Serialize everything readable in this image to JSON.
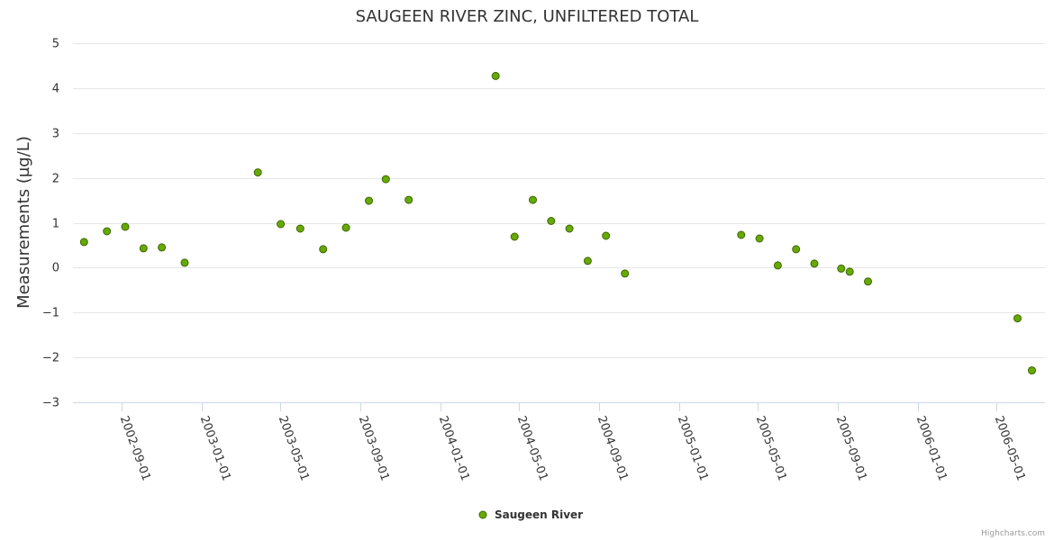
{
  "chart_data": {
    "type": "scatter",
    "title": "SAUGEEN RIVER ZINC, UNFILTERED TOTAL",
    "xlabel": "",
    "ylabel": "Measurements (µg/L)",
    "ylim": [
      -3,
      5
    ],
    "y_ticks": [
      "5",
      "4",
      "3",
      "2",
      "1",
      "0",
      "−1",
      "−2",
      "−3"
    ],
    "x_range": [
      "2002-06-18",
      "2006-07-15"
    ],
    "x_ticks": [
      "2002-09-01",
      "2003-01-01",
      "2003-05-01",
      "2003-09-01",
      "2004-01-01",
      "2004-05-01",
      "2004-09-01",
      "2005-01-01",
      "2005-05-01",
      "2005-09-01",
      "2006-01-01",
      "2006-05-01"
    ],
    "grid": true,
    "legend_position": "bottom-center",
    "series": [
      {
        "name": "Saugeen River",
        "color": "#66aa00",
        "points": [
          {
            "x": "2002-07-05",
            "y": 0.57
          },
          {
            "x": "2002-08-09",
            "y": 0.81
          },
          {
            "x": "2002-09-06",
            "y": 0.91
          },
          {
            "x": "2002-10-04",
            "y": 0.43
          },
          {
            "x": "2002-11-01",
            "y": 0.45
          },
          {
            "x": "2002-12-06",
            "y": 0.11
          },
          {
            "x": "2003-03-28",
            "y": 2.12
          },
          {
            "x": "2003-05-02",
            "y": 0.97
          },
          {
            "x": "2003-06-01",
            "y": 0.87
          },
          {
            "x": "2003-07-06",
            "y": 0.41
          },
          {
            "x": "2003-08-10",
            "y": 0.89
          },
          {
            "x": "2003-09-14",
            "y": 1.49
          },
          {
            "x": "2003-10-10",
            "y": 1.97
          },
          {
            "x": "2003-11-14",
            "y": 1.51
          },
          {
            "x": "2004-03-26",
            "y": 4.27
          },
          {
            "x": "2004-04-24",
            "y": 0.69
          },
          {
            "x": "2004-05-22",
            "y": 1.51
          },
          {
            "x": "2004-06-19",
            "y": 1.04
          },
          {
            "x": "2004-07-17",
            "y": 0.87
          },
          {
            "x": "2004-08-14",
            "y": 0.15
          },
          {
            "x": "2004-09-11",
            "y": 0.71
          },
          {
            "x": "2004-10-10",
            "y": -0.13
          },
          {
            "x": "2005-04-06",
            "y": 0.73
          },
          {
            "x": "2005-05-04",
            "y": 0.65
          },
          {
            "x": "2005-06-01",
            "y": 0.05
          },
          {
            "x": "2005-06-29",
            "y": 0.41
          },
          {
            "x": "2005-07-27",
            "y": 0.09
          },
          {
            "x": "2005-09-06",
            "y": -0.02
          },
          {
            "x": "2005-09-19",
            "y": -0.09
          },
          {
            "x": "2005-10-17",
            "y": -0.31
          },
          {
            "x": "2006-06-03",
            "y": -1.13
          },
          {
            "x": "2006-06-25",
            "y": -2.29
          }
        ]
      }
    ]
  },
  "credits": "Highcharts.com"
}
